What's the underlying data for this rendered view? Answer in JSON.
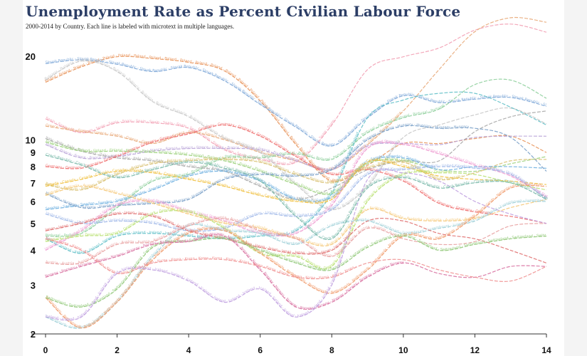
{
  "chart_data": {
    "type": "line",
    "title": "Unemployment Rate as Percent Civilian Labour Force",
    "subtitle": "2000-2014 by Country. Each line is labeled with microtext in multiple languages.",
    "xlabel": "",
    "ylabel": "",
    "y_scale": "log",
    "xlim": [
      0,
      14
    ],
    "ylim": [
      2,
      24
    ],
    "x_ticks": [
      "0",
      "2",
      "4",
      "6",
      "8",
      "10",
      "12",
      "14"
    ],
    "y_ticks": [
      "2",
      "3",
      "4",
      "5",
      "6",
      "7",
      "8",
      "9",
      "10",
      "20"
    ],
    "grid": false,
    "x": [
      0,
      1,
      2,
      3,
      4,
      5,
      6,
      7,
      8,
      9,
      10,
      11,
      12,
      13,
      14
    ],
    "series": [
      {
        "name": "Poland",
        "color": "#e8935a",
        "values": [
          16.1,
          18.3,
          19.9,
          19.6,
          19.0,
          17.7,
          13.8,
          9.6,
          7.1,
          8.1,
          9.7,
          9.7,
          10.1,
          10.3,
          9.0
        ]
      },
      {
        "name": "Slovak Republic",
        "color": "#7fa8d8",
        "values": [
          18.8,
          19.4,
          18.7,
          17.6,
          18.2,
          16.3,
          13.4,
          11.1,
          9.5,
          12.0,
          14.4,
          13.6,
          14.0,
          14.2,
          13.2
        ]
      },
      {
        "name": "Spain",
        "color": "#f2a0b4",
        "values": [
          11.9,
          10.6,
          11.5,
          11.5,
          11.0,
          9.2,
          8.5,
          8.3,
          11.3,
          17.9,
          19.9,
          21.4,
          24.8,
          26.1,
          24.4
        ]
      },
      {
        "name": "Greece",
        "color": "#e8a878",
        "values": [
          11.2,
          10.7,
          10.3,
          9.7,
          10.6,
          10.0,
          9.0,
          8.4,
          7.8,
          9.6,
          12.7,
          17.9,
          24.5,
          27.5,
          26.5
        ]
      },
      {
        "name": "Bulgaria",
        "color": "#c8c8c8",
        "values": [
          16.4,
          19.2,
          17.6,
          13.7,
          12.1,
          10.1,
          9.0,
          6.9,
          5.6,
          6.8,
          10.2,
          11.3,
          12.3,
          13.0,
          11.4
        ]
      },
      {
        "name": "Portugal",
        "color": "#8ecf9c",
        "values": [
          4.5,
          4.6,
          5.7,
          7.1,
          7.5,
          8.6,
          8.6,
          8.9,
          8.5,
          10.6,
          12.0,
          12.9,
          15.8,
          16.4,
          14.1
        ]
      },
      {
        "name": "Ireland",
        "color": "#62c0c8",
        "values": [
          4.4,
          3.9,
          4.5,
          4.6,
          4.5,
          4.4,
          4.5,
          4.7,
          6.4,
          12.0,
          13.9,
          14.7,
          14.7,
          13.1,
          11.3
        ]
      },
      {
        "name": "France",
        "color": "#b9a4d8",
        "values": [
          9.6,
          8.6,
          8.7,
          9.1,
          9.3,
          9.3,
          9.2,
          8.4,
          7.8,
          9.5,
          9.7,
          9.6,
          10.2,
          10.3,
          10.3
        ]
      },
      {
        "name": "Italy",
        "color": "#a8a8a8",
        "values": [
          10.1,
          9.1,
          8.6,
          8.4,
          8.0,
          7.7,
          6.8,
          6.1,
          6.7,
          7.8,
          8.4,
          8.4,
          10.7,
          12.1,
          12.7
        ]
      },
      {
        "name": "Germany",
        "color": "#ee6e6e",
        "values": [
          8.0,
          7.9,
          8.7,
          9.8,
          10.5,
          11.3,
          10.3,
          8.7,
          7.5,
          7.8,
          7.1,
          5.9,
          5.5,
          5.3,
          5.0
        ]
      },
      {
        "name": "Finland",
        "color": "#9ad07a",
        "values": [
          9.8,
          9.1,
          9.1,
          9.0,
          8.8,
          8.4,
          7.7,
          6.9,
          6.4,
          8.2,
          8.4,
          7.8,
          7.7,
          8.2,
          8.7
        ]
      },
      {
        "name": "Belgium",
        "color": "#d8c070",
        "values": [
          6.9,
          6.6,
          7.5,
          8.2,
          8.4,
          8.5,
          8.3,
          7.5,
          7.0,
          7.9,
          8.3,
          7.2,
          7.6,
          8.4,
          8.5
        ]
      },
      {
        "name": "Sweden",
        "color": "#6fb0e0",
        "values": [
          5.6,
          5.8,
          6.0,
          6.6,
          7.4,
          7.7,
          7.1,
          6.1,
          6.2,
          8.3,
          8.6,
          7.8,
          8.0,
          8.0,
          7.9
        ]
      },
      {
        "name": "Canada",
        "color": "#f0c040",
        "values": [
          6.8,
          7.2,
          7.7,
          7.6,
          7.2,
          6.8,
          6.3,
          6.0,
          6.1,
          8.3,
          8.0,
          7.4,
          7.2,
          7.1,
          6.9
        ]
      },
      {
        "name": "Hungary",
        "color": "#7aa0c8",
        "values": [
          6.4,
          5.7,
          5.8,
          5.9,
          6.1,
          7.2,
          7.5,
          7.4,
          7.8,
          10.0,
          11.2,
          11.0,
          11.0,
          10.2,
          7.7
        ]
      },
      {
        "name": "United States",
        "color": "#ee9ad0",
        "values": [
          4.0,
          4.7,
          5.8,
          6.0,
          5.5,
          5.1,
          4.6,
          4.6,
          5.8,
          9.3,
          9.6,
          8.9,
          8.1,
          7.4,
          6.2
        ]
      },
      {
        "name": "United Kingdom",
        "color": "#a0b8e8",
        "values": [
          5.4,
          5.0,
          5.1,
          5.0,
          4.7,
          4.8,
          5.4,
          5.3,
          5.6,
          7.5,
          7.8,
          8.0,
          7.9,
          7.5,
          6.1
        ]
      },
      {
        "name": "Australia",
        "color": "#f5c878",
        "values": [
          6.3,
          6.8,
          6.4,
          5.9,
          5.4,
          5.0,
          4.8,
          4.4,
          4.2,
          5.6,
          5.2,
          5.1,
          5.2,
          5.7,
          6.1
        ]
      },
      {
        "name": "Denmark",
        "color": "#b8e070",
        "values": [
          4.3,
          4.5,
          4.6,
          5.4,
          5.5,
          4.8,
          3.9,
          3.8,
          3.5,
          6.0,
          7.5,
          7.6,
          7.5,
          7.0,
          6.6
        ]
      },
      {
        "name": "Luxembourg",
        "color": "#a0d0d8",
        "values": [
          2.3,
          2.1,
          2.6,
          3.8,
          4.9,
          4.7,
          4.6,
          4.2,
          4.9,
          5.1,
          4.6,
          4.8,
          5.1,
          5.9,
          6.0
        ]
      },
      {
        "name": "Austria",
        "color": "#e8a0a0",
        "values": [
          3.6,
          3.6,
          4.2,
          4.3,
          4.9,
          5.2,
          4.7,
          4.4,
          3.8,
          4.8,
          4.4,
          4.2,
          4.3,
          4.9,
          5.0
        ]
      },
      {
        "name": "Netherlands",
        "color": "#f09a6a",
        "values": [
          2.7,
          2.1,
          2.6,
          3.7,
          4.6,
          4.7,
          3.9,
          3.2,
          2.8,
          3.4,
          4.5,
          4.4,
          5.3,
          6.7,
          6.8
        ]
      },
      {
        "name": "Japan",
        "color": "#e07070",
        "values": [
          4.7,
          5.0,
          5.4,
          5.3,
          4.7,
          4.4,
          4.1,
          3.9,
          4.0,
          5.1,
          5.1,
          4.6,
          4.4,
          4.0,
          3.6
        ]
      },
      {
        "name": "Switzerland",
        "color": "#90c878",
        "values": [
          2.7,
          2.5,
          2.9,
          4.1,
          4.3,
          4.4,
          4.0,
          3.6,
          3.4,
          4.1,
          4.5,
          4.0,
          4.2,
          4.4,
          4.5
        ]
      },
      {
        "name": "Norway",
        "color": "#d870a0",
        "values": [
          3.2,
          3.5,
          3.8,
          4.2,
          4.3,
          4.5,
          3.4,
          2.5,
          2.6,
          3.2,
          3.6,
          3.3,
          3.2,
          3.5,
          3.5
        ]
      },
      {
        "name": "Korea",
        "color": "#f09090",
        "values": [
          4.4,
          4.0,
          3.3,
          3.6,
          3.7,
          3.7,
          3.5,
          3.2,
          3.2,
          3.6,
          3.7,
          3.4,
          3.2,
          3.1,
          3.5
        ]
      },
      {
        "name": "Iceland",
        "color": "#c0a0e0",
        "values": [
          2.3,
          2.3,
          3.3,
          3.4,
          3.1,
          2.6,
          2.9,
          2.3,
          3.0,
          7.2,
          7.6,
          7.1,
          6.0,
          5.4,
          5.0
        ]
      },
      {
        "name": "Czech Republic",
        "color": "#78b8a8",
        "values": [
          8.8,
          8.1,
          7.3,
          7.8,
          8.3,
          7.9,
          7.1,
          5.3,
          4.4,
          6.7,
          7.3,
          6.7,
          7.0,
          7.0,
          6.1
        ]
      }
    ]
  }
}
